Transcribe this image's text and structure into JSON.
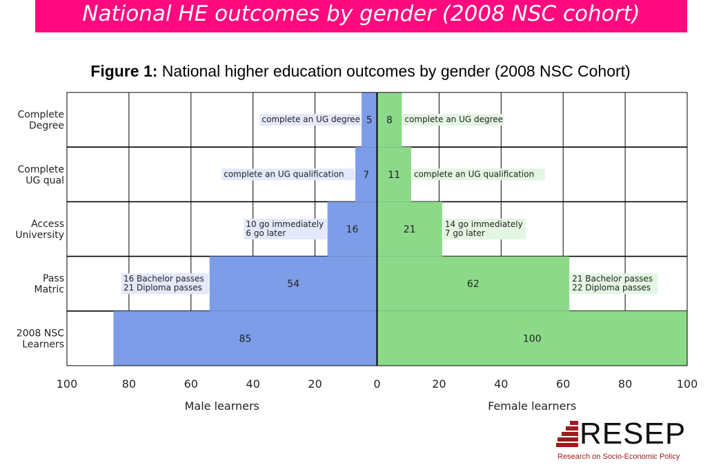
{
  "banner": {
    "title": "National HE outcomes by gender (2008 NSC cohort)"
  },
  "figure": {
    "label": "Figure 1:",
    "caption": "National higher education outcomes by gender (2008 NSC Cohort)"
  },
  "logo": {
    "text": "RESEP",
    "subtitle": "Research on Socio-Economic Policy"
  },
  "colors": {
    "male": "#7d9de8",
    "female": "#8cd98a",
    "male_label_bg": "#e3e9fa",
    "female_label_bg": "#e3f6e2"
  },
  "chart_data": {
    "type": "bar",
    "orientation": "horizontal-diverging",
    "categories": [
      "Complete Degree",
      "Complete UG qual",
      "Access University",
      "Pass Matric",
      "2008 NSC Learners"
    ],
    "category_lines": [
      [
        "Complete",
        "Degree"
      ],
      [
        "Complete",
        "UG qual"
      ],
      [
        "Access",
        "University"
      ],
      [
        "Pass",
        "Matric"
      ],
      [
        "2008 NSC",
        "Learners"
      ]
    ],
    "series": [
      {
        "name": "Male learners",
        "values": [
          5,
          7,
          16,
          54,
          85
        ]
      },
      {
        "name": "Female learners",
        "values": [
          8,
          11,
          21,
          62,
          100
        ]
      }
    ],
    "annotations": {
      "male": [
        [
          "complete an UG degree"
        ],
        [
          "complete an UG qualification"
        ],
        [
          "10 go immediately",
          "6 go later"
        ],
        [
          "16 Bachelor passes",
          "21 Diploma passes"
        ],
        []
      ],
      "female": [
        [
          "complete an UG degree"
        ],
        [
          "complete an UG qualification"
        ],
        [
          "14 go immediately",
          "7 go later"
        ],
        [
          "21 Bachelor passes",
          "22 Diploma passes"
        ],
        []
      ]
    },
    "xticks": [
      "100",
      "80",
      "60",
      "40",
      "20",
      "0",
      "20",
      "40",
      "60",
      "80",
      "100"
    ],
    "xlim": [
      -100,
      100
    ],
    "xlabel_left": "Male learners",
    "xlabel_right": "Female learners",
    "grid": true
  }
}
